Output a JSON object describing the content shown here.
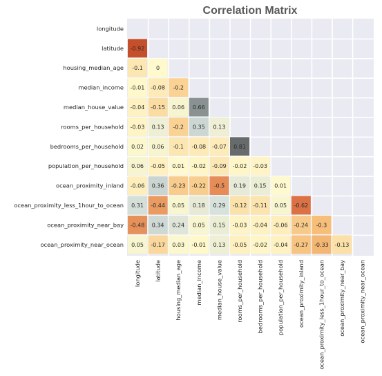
{
  "chart_data": {
    "type": "heatmap",
    "title": "Correlation Matrix",
    "variables": [
      "longitude",
      "latitude",
      "housing_median_age",
      "median_income",
      "median_house_value",
      "rooms_per_household",
      "bedrooms_per_household",
      "population_per_household",
      "ocean_proximity_inland",
      "ocean_proximity_less_1hour_to_ocean",
      "ocean_proximity_near_bay",
      "ocean_proximity_near_ocean"
    ],
    "mask": "upper-triangle-including-diagonal",
    "vmin": -1,
    "vmax": 1,
    "rows": [
      [],
      [
        -0.92
      ],
      [
        -0.1,
        0
      ],
      [
        -0.01,
        -0.08,
        -0.2
      ],
      [
        -0.04,
        -0.15,
        0.06,
        0.66
      ],
      [
        -0.03,
        0.13,
        -0.2,
        0.35,
        0.13
      ],
      [
        0.02,
        0.06,
        -0.1,
        -0.08,
        -0.07,
        0.81
      ],
      [
        0.06,
        -0.05,
        0.01,
        -0.02,
        -0.09,
        -0.02,
        -0.03
      ],
      [
        -0.06,
        0.36,
        -0.23,
        -0.22,
        -0.5,
        0.19,
        0.15,
        0.01
      ],
      [
        0.31,
        -0.44,
        0.05,
        0.18,
        0.29,
        -0.12,
        -0.11,
        0.05,
        -0.62
      ],
      [
        -0.48,
        0.34,
        0.24,
        0.05,
        0.15,
        -0.03,
        -0.04,
        -0.06,
        -0.24,
        -0.3
      ],
      [
        0.05,
        -0.17,
        0.03,
        -0.01,
        0.13,
        -0.05,
        -0.02,
        -0.04,
        -0.27,
        -0.33,
        -0.13
      ]
    ]
  }
}
